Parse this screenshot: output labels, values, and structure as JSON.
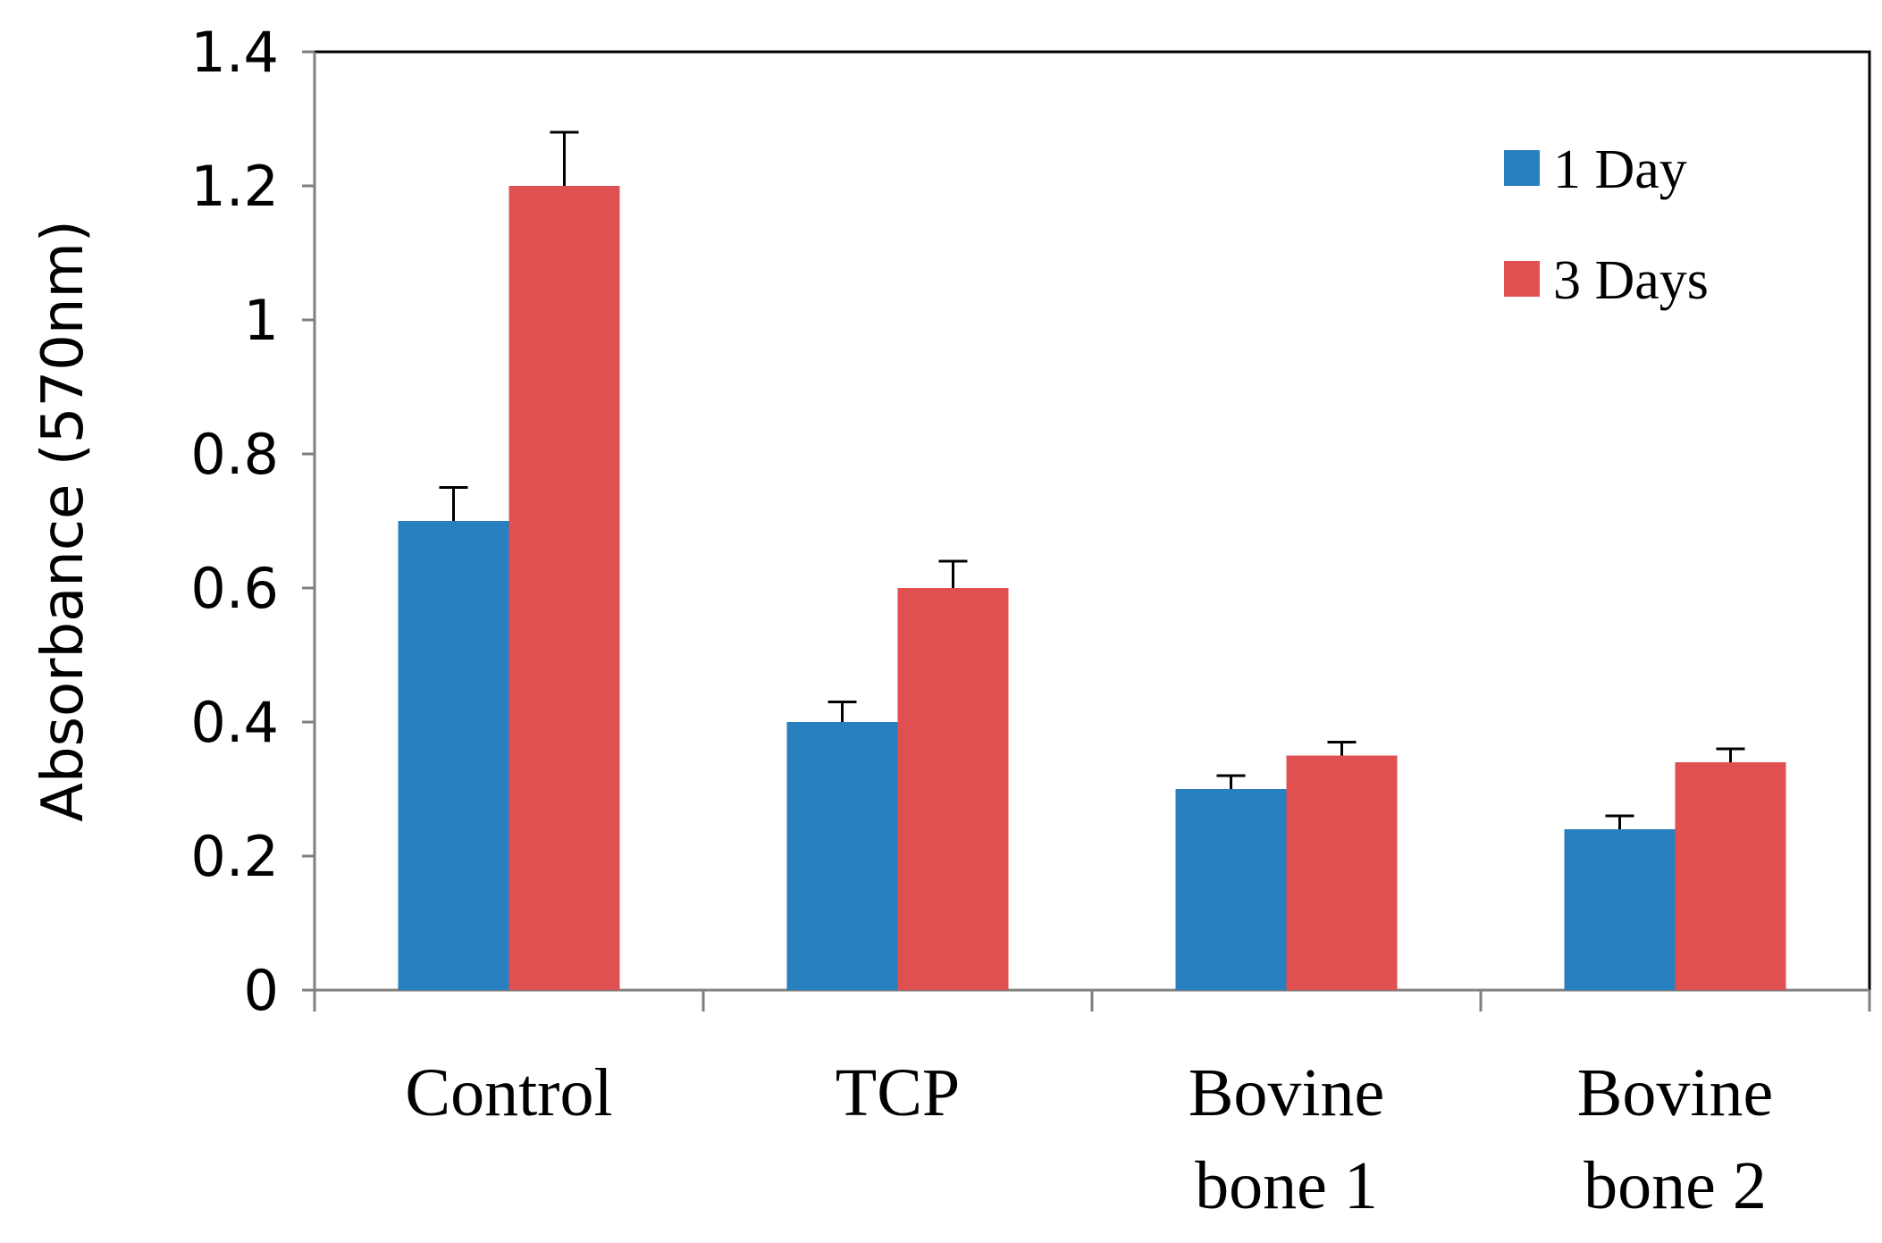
{
  "chart_data": {
    "type": "bar",
    "title": "",
    "xlabel": "",
    "ylabel": "Absorbance (570nm)",
    "ylim": [
      0,
      1.4
    ],
    "yticks": [
      "0",
      "0.2",
      "0.4",
      "0.6",
      "0.8",
      "1",
      "1.2",
      "1.4"
    ],
    "categories": [
      [
        "Control"
      ],
      [
        "TCP"
      ],
      [
        "Bovine",
        "bone 1"
      ],
      [
        "Bovine",
        "bone 2"
      ]
    ],
    "series": [
      {
        "name": "1 Day",
        "color": "#2880C1",
        "values": [
          0.7,
          0.4,
          0.3,
          0.24
        ],
        "errors": [
          0.05,
          0.03,
          0.02,
          0.02
        ]
      },
      {
        "name": "3 Days",
        "color": "#E05050",
        "values": [
          1.2,
          0.6,
          0.35,
          0.34
        ],
        "errors": [
          0.08,
          0.04,
          0.02,
          0.02
        ]
      }
    ],
    "legend_position": "top-right",
    "grid": false
  }
}
